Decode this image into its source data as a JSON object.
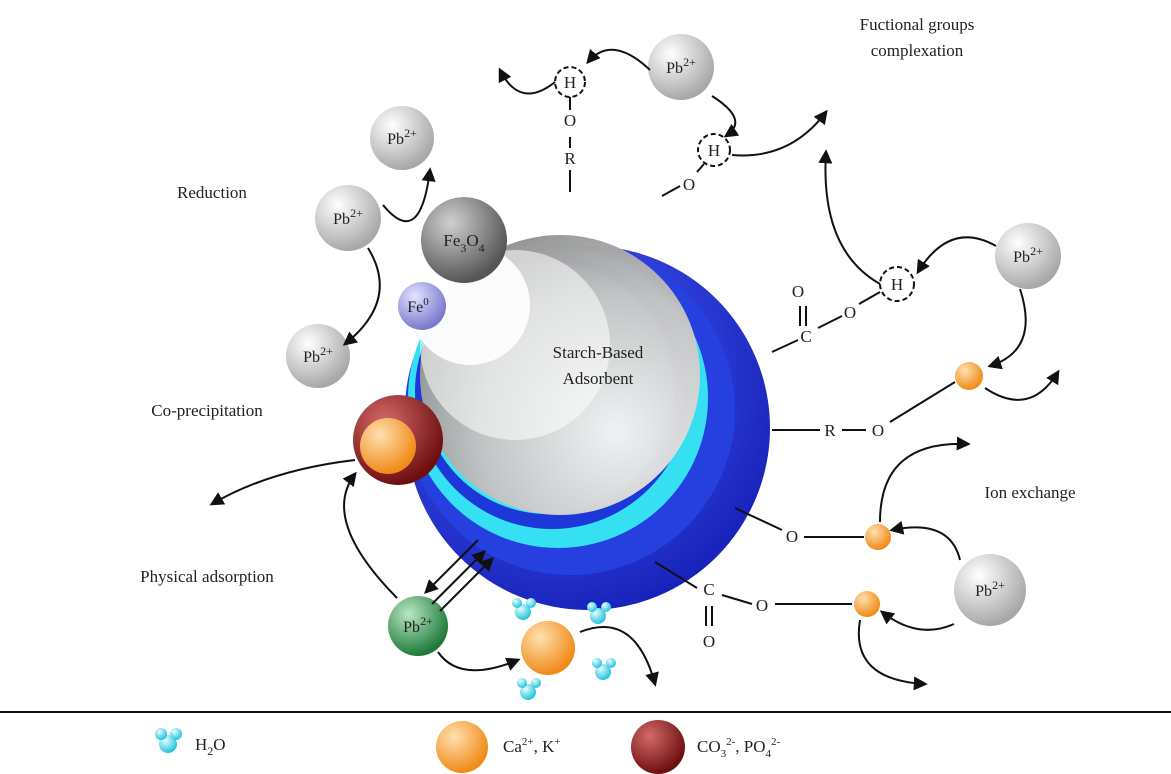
{
  "labels": {
    "functional": [
      "Fuctional groups",
      "complexation"
    ],
    "reduction": "Reduction",
    "coprecip": "Co-precipitation",
    "physical": "Physical adsorption",
    "ionexchange": "Ion exchange",
    "center": [
      "Starch-Based",
      "Adsorbent"
    ]
  },
  "ion": {
    "base": "Pb",
    "charge": "2+"
  },
  "iron": {
    "oxide": "Fe3O4",
    "zero": "Fe0"
  },
  "atoms": {
    "H": "H",
    "O": "O",
    "R": "R",
    "C": "C"
  },
  "legend": {
    "water": "H2O",
    "cations": "Ca2+, K+",
    "anions": "CO32-, PO42-"
  },
  "colors": {
    "sphere_outer": "#1e2fd8",
    "sphere_cyan": "#33e2f4",
    "sphere_inner": "#b8b8b8",
    "lead_ion": "#d6d6d6",
    "cation": "#f59a2e",
    "anion": "#8b1a1a",
    "fe0": "#8c8ad6",
    "fe3o4": "#7f7f7f",
    "green_ion": "#2e8b47",
    "water": "#35d8ec"
  }
}
